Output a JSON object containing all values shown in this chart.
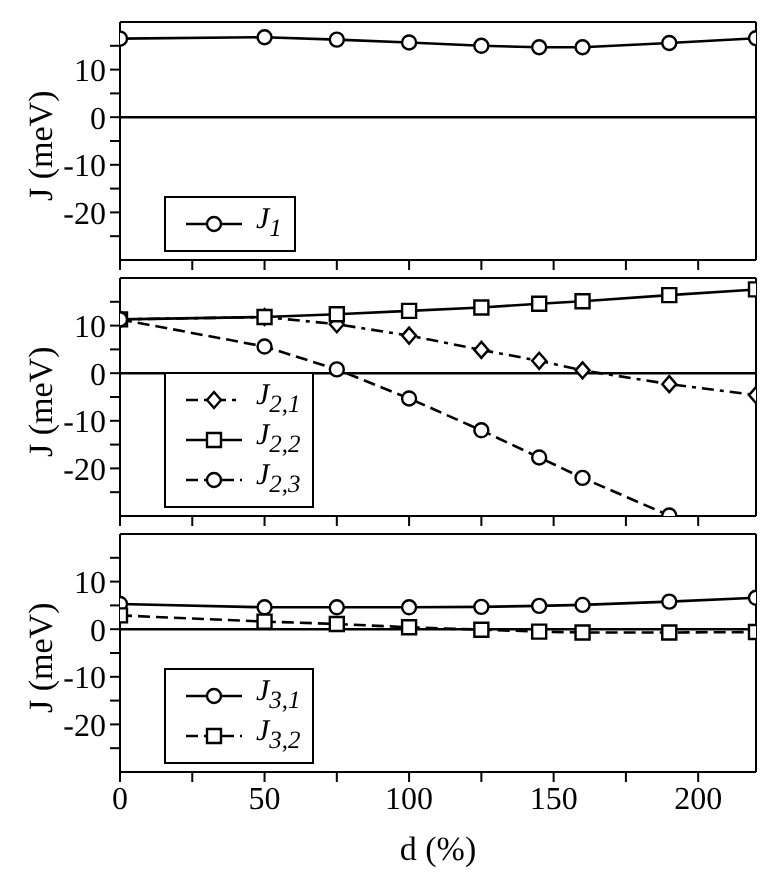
{
  "chart_data": [
    {
      "type": "line",
      "ylabel": "J (meV)",
      "x": [
        0,
        50,
        75,
        100,
        125,
        145,
        160,
        190,
        220
      ],
      "xlim": [
        0,
        220
      ],
      "ylim": [
        -30,
        20
      ],
      "xticks": [
        0,
        {
          "value": 25,
          "label": null
        },
        50,
        {
          "value": 75,
          "label": null
        },
        100,
        {
          "value": 125,
          "label": null
        },
        150,
        {
          "value": 175,
          "label": null
        },
        200
      ],
      "yticks": [
        {
          "value": -25,
          "label": null
        },
        -20,
        {
          "value": -15,
          "label": null
        },
        -10,
        {
          "value": -5,
          "label": null
        },
        0,
        {
          "value": 5,
          "label": null
        },
        10,
        {
          "value": 15,
          "label": null
        }
      ],
      "tick_labels": "y",
      "legend": "bottom left",
      "ref_lines": [
        {
          "axis": "y",
          "value": 0,
          "color": "#000000"
        }
      ],
      "series": [
        {
          "name": "J$_{1}$",
          "color": "#000000",
          "marker": "circle",
          "line_style": "solid",
          "values": [
            16.5,
            16.8,
            16.3,
            15.7,
            15,
            14.7,
            14.7,
            15.6,
            16.6
          ]
        }
      ]
    },
    {
      "type": "line",
      "ylabel": "J (meV)",
      "x": [
        0,
        50,
        75,
        100,
        125,
        145,
        160,
        190,
        220
      ],
      "xlim": [
        0,
        220
      ],
      "ylim": [
        -30,
        20
      ],
      "xticks": [
        0,
        {
          "value": 25,
          "label": null
        },
        50,
        {
          "value": 75,
          "label": null
        },
        100,
        {
          "value": 125,
          "label": null
        },
        150,
        {
          "value": 175,
          "label": null
        },
        200
      ],
      "yticks": [
        {
          "value": -25,
          "label": null
        },
        -20,
        {
          "value": -15,
          "label": null
        },
        -10,
        {
          "value": -5,
          "label": null
        },
        0,
        {
          "value": 5,
          "label": null
        },
        10,
        {
          "value": 15,
          "label": null
        }
      ],
      "tick_labels": "y",
      "legend": "bottom left",
      "ref_lines": [
        {
          "axis": "y",
          "value": 0,
          "color": "#000000"
        }
      ],
      "series": [
        {
          "name": "J$_{2,1}$",
          "color": "#000000",
          "marker": "diamond",
          "line_style": "dashdot",
          "values": [
            11.3,
            11.8,
            10.3,
            7.9,
            4.9,
            2.6,
            0.6,
            -2.3,
            -4.6
          ]
        },
        {
          "name": "J$_{2,2}$",
          "color": "#000000",
          "marker": "square",
          "line_style": "solid",
          "values": [
            11.3,
            11.8,
            12.4,
            13.1,
            13.8,
            14.6,
            15.1,
            16.4,
            17.6
          ]
        },
        {
          "name": "J$_{2,3}$",
          "color": "#000000",
          "marker": "circle",
          "line_style": "dashed",
          "values": [
            11.3,
            5.6,
            0.8,
            -5.3,
            -12,
            -17.7,
            -22,
            -29.9,
            null
          ]
        }
      ]
    },
    {
      "type": "line",
      "ylabel": "J (meV)",
      "xlabel": "d (%)",
      "x": [
        0,
        50,
        75,
        100,
        125,
        145,
        160,
        190,
        220
      ],
      "xlim": [
        0,
        220
      ],
      "ylim": [
        -30,
        20
      ],
      "xticks": [
        0,
        {
          "value": 25,
          "label": null
        },
        50,
        {
          "value": 75,
          "label": null
        },
        100,
        {
          "value": 125,
          "label": null
        },
        150,
        {
          "value": 175,
          "label": null
        },
        200
      ],
      "yticks": [
        {
          "value": -25,
          "label": null
        },
        -20,
        {
          "value": -15,
          "label": null
        },
        -10,
        {
          "value": -5,
          "label": null
        },
        0,
        {
          "value": 5,
          "label": null
        },
        10,
        {
          "value": 15,
          "label": null
        }
      ],
      "legend": "bottom left",
      "ref_lines": [
        {
          "axis": "y",
          "value": 0,
          "color": "#000000"
        }
      ],
      "series": [
        {
          "name": "J$_{3,1}$",
          "color": "#000000",
          "marker": "circle",
          "line_style": "solid",
          "values": [
            5.3,
            4.6,
            4.6,
            4.6,
            4.7,
            4.9,
            5.1,
            5.8,
            6.6
          ]
        },
        {
          "name": "J$_{3,2}$",
          "color": "#000000",
          "marker": "square",
          "line_style": "dashed",
          "values": [
            2.9,
            1.6,
            1.1,
            0.4,
            -0.1,
            -0.5,
            -0.7,
            -0.7,
            -0.6
          ]
        }
      ]
    }
  ]
}
